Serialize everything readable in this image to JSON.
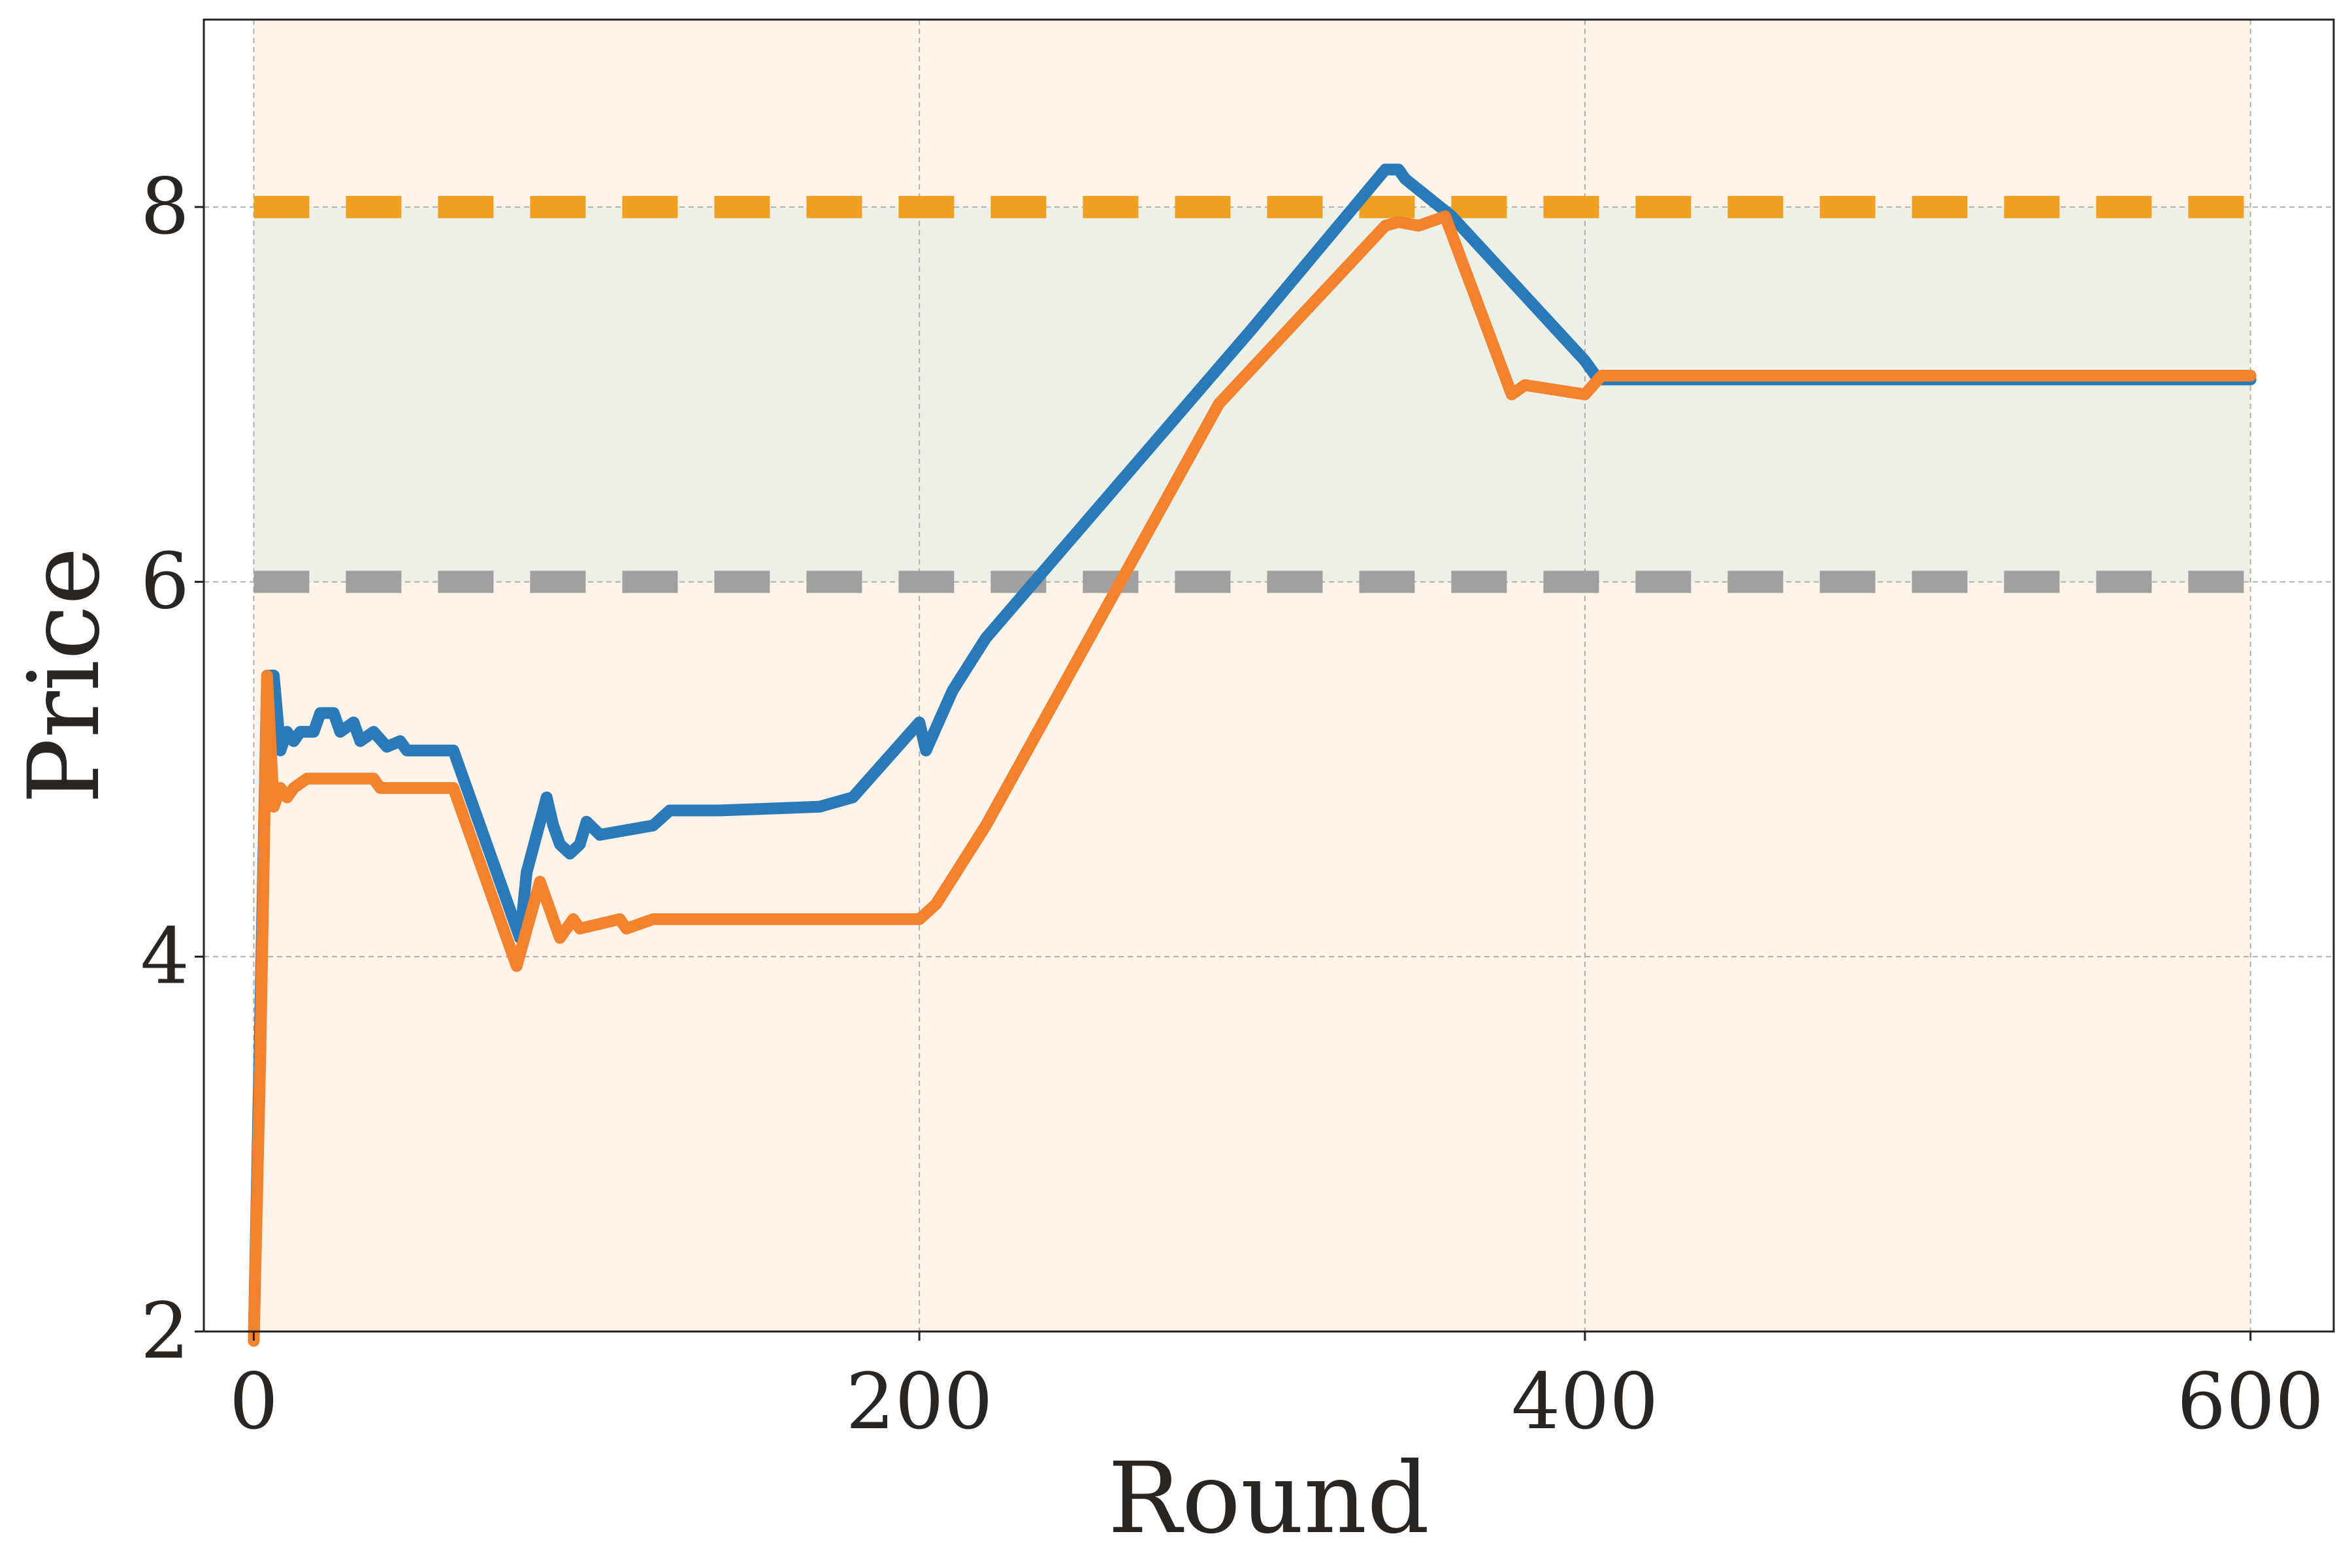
{
  "chart_data": {
    "type": "line",
    "title": "",
    "xlabel": "Round",
    "ylabel": "Price",
    "xlim": [
      -15,
      625
    ],
    "ylim": [
      2,
      9
    ],
    "xticks": [
      0,
      200,
      400,
      600
    ],
    "yticks": [
      2,
      4,
      6,
      8
    ],
    "grid": true,
    "legend": "none",
    "shaded_regions": [
      {
        "x": [
          0,
          600
        ],
        "y": [
          2,
          9
        ],
        "color": "#fdf3e8"
      },
      {
        "x": [
          0,
          600
        ],
        "y": [
          6,
          8
        ],
        "color": "#edf0e7"
      }
    ],
    "reference_lines": [
      {
        "y": 8,
        "color": "#f0a020",
        "style": "dashed"
      },
      {
        "y": 6,
        "color": "#a0a0a0",
        "style": "dashed"
      }
    ],
    "series": [
      {
        "color": "#2a7ab9",
        "points": [
          [
            0,
            1.3
          ],
          [
            4,
            5.5
          ],
          [
            6,
            5.5
          ],
          [
            8,
            5.1
          ],
          [
            10,
            5.2
          ],
          [
            12,
            5.15
          ],
          [
            14,
            5.2
          ],
          [
            18,
            5.2
          ],
          [
            20,
            5.3
          ],
          [
            24,
            5.3
          ],
          [
            26,
            5.2
          ],
          [
            30,
            5.25
          ],
          [
            32,
            5.15
          ],
          [
            36,
            5.2
          ],
          [
            40,
            5.12
          ],
          [
            44,
            5.15
          ],
          [
            46,
            5.1
          ],
          [
            60,
            5.1
          ],
          [
            80,
            4.1
          ],
          [
            82,
            4.45
          ],
          [
            88,
            4.85
          ],
          [
            90,
            4.7
          ],
          [
            92,
            4.6
          ],
          [
            95,
            4.55
          ],
          [
            98,
            4.6
          ],
          [
            100,
            4.72
          ],
          [
            104,
            4.65
          ],
          [
            120,
            4.7
          ],
          [
            125,
            4.78
          ],
          [
            140,
            4.78
          ],
          [
            170,
            4.8
          ],
          [
            180,
            4.85
          ],
          [
            200,
            5.25
          ],
          [
            202,
            5.1
          ],
          [
            210,
            5.42
          ],
          [
            220,
            5.7
          ],
          [
            300,
            7.35
          ],
          [
            340,
            8.2
          ],
          [
            344,
            8.2
          ],
          [
            346,
            8.15
          ],
          [
            360,
            7.95
          ],
          [
            400,
            7.18
          ],
          [
            404,
            7.08
          ],
          [
            420,
            7.08
          ],
          [
            600,
            7.08
          ]
        ]
      },
      {
        "color": "#f2822e",
        "points": [
          [
            0,
            1.8
          ],
          [
            2,
            3.5
          ],
          [
            4,
            5.5
          ],
          [
            6,
            4.8
          ],
          [
            8,
            4.9
          ],
          [
            10,
            4.85
          ],
          [
            12,
            4.9
          ],
          [
            16,
            4.95
          ],
          [
            36,
            4.95
          ],
          [
            38,
            4.9
          ],
          [
            60,
            4.9
          ],
          [
            78,
            4.0
          ],
          [
            79,
            3.95
          ],
          [
            86,
            4.4
          ],
          [
            92,
            4.1
          ],
          [
            96,
            4.2
          ],
          [
            98,
            4.15
          ],
          [
            110,
            4.2
          ],
          [
            112,
            4.15
          ],
          [
            120,
            4.2
          ],
          [
            200,
            4.2
          ],
          [
            205,
            4.28
          ],
          [
            220,
            4.7
          ],
          [
            290,
            6.95
          ],
          [
            340,
            7.9
          ],
          [
            344,
            7.92
          ],
          [
            350,
            7.9
          ],
          [
            358,
            7.95
          ],
          [
            378,
            7.0
          ],
          [
            382,
            7.05
          ],
          [
            400,
            7.0
          ],
          [
            405,
            7.1
          ],
          [
            600,
            7.1
          ]
        ]
      }
    ]
  }
}
